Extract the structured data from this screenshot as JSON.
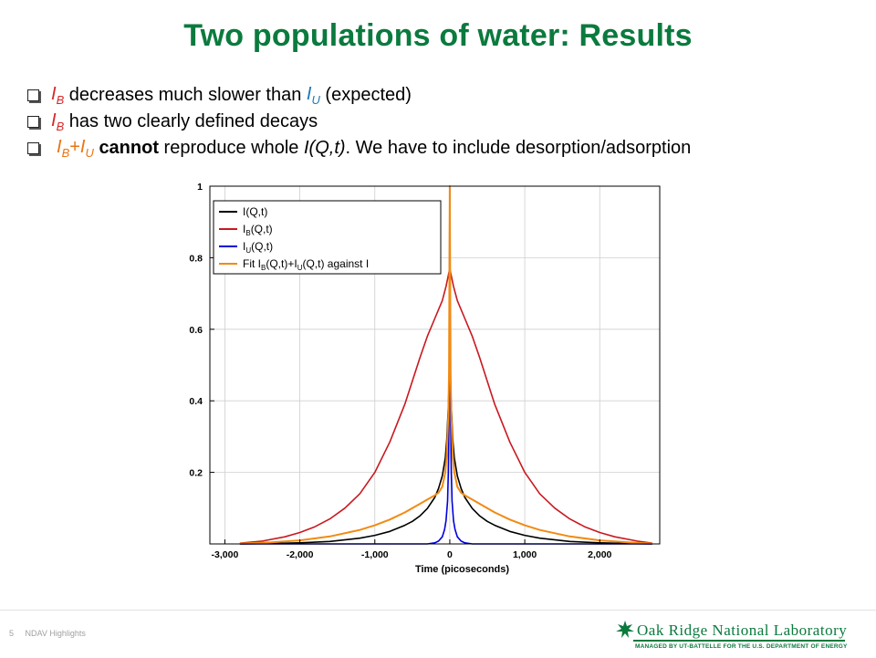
{
  "slide": {
    "title": "Two populations of water: Results",
    "page_number": "5",
    "footer_text": "NDAV Highlights",
    "logo": {
      "name": "Oak Ridge National Laboratory",
      "tagline": "MANAGED BY UT-BATTELLE FOR THE U.S. DEPARTMENT OF ENERGY"
    }
  },
  "bullets": [
    {
      "b1_sym": "I",
      "b1_sub": "B",
      "b1_text1": " decreases much slower than ",
      "b1_sym2": "I",
      "b1_sub2": "U",
      "b1_text2": " (expected)"
    },
    {
      "b2_sym": "I",
      "b2_sub": "B",
      "b2_text": " has two clearly defined decays"
    },
    {
      "b3_sym": "I",
      "b3_sub": "B",
      "b3_plus": "+",
      "b3_sym2": "I",
      "b3_sub2": "U",
      "b3_bold": "cannot",
      "b3_text1": " reproduce whole ",
      "b3_func": "I(Q,t)",
      "b3_text2": ". We have to include desorption/adsorption"
    }
  ],
  "colors": {
    "title_green": "#0b7a3e",
    "I_black": "#000000",
    "IB_red": "#c8191f",
    "IU_blue": "#0000dd",
    "fit_orange": "#f28a13"
  },
  "chart_data": {
    "type": "line",
    "xlabel": "Time (picoseconds)",
    "ylabel": "",
    "xlim": [
      -3200,
      2800
    ],
    "ylim": [
      0,
      1
    ],
    "x_ticks": [
      -3000,
      -2000,
      -1000,
      0,
      1000,
      2000
    ],
    "x_tick_labels": [
      "-3,000",
      "-2,000",
      "-1,000",
      "0",
      "1,000",
      "2,000"
    ],
    "y_ticks": [
      0.2,
      0.4,
      0.6,
      0.8,
      1
    ],
    "y_tick_labels": [
      "0.2",
      "0.4",
      "0.6",
      "0.8",
      "1"
    ],
    "grid": true,
    "legend_position": "top-left",
    "series": [
      {
        "name": "I(Q,t)",
        "color": "#000000",
        "x": [
          -2800,
          -2400,
          -2000,
          -1600,
          -1200,
          -1000,
          -800,
          -600,
          -500,
          -400,
          -300,
          -200,
          -150,
          -100,
          -60,
          -40,
          -20,
          -10,
          0,
          10,
          20,
          40,
          60,
          100,
          150,
          200,
          300,
          400,
          500,
          600,
          800,
          1000,
          1200,
          1600,
          2000,
          2400,
          2700
        ],
        "y": [
          0.0,
          0.001,
          0.003,
          0.007,
          0.016,
          0.024,
          0.035,
          0.052,
          0.063,
          0.078,
          0.099,
          0.13,
          0.155,
          0.19,
          0.24,
          0.29,
          0.38,
          0.44,
          0.52,
          0.44,
          0.38,
          0.29,
          0.24,
          0.19,
          0.155,
          0.13,
          0.099,
          0.078,
          0.063,
          0.052,
          0.035,
          0.024,
          0.016,
          0.007,
          0.003,
          0.001,
          0.0
        ]
      },
      {
        "name": "I_B(Q,t)",
        "color": "#c8191f",
        "x": [
          -2800,
          -2500,
          -2200,
          -2000,
          -1800,
          -1600,
          -1400,
          -1200,
          -1000,
          -800,
          -600,
          -400,
          -300,
          -200,
          -100,
          -50,
          0,
          50,
          100,
          200,
          300,
          400,
          600,
          800,
          1000,
          1200,
          1400,
          1600,
          1800,
          2000,
          2200,
          2500,
          2700
        ],
        "y": [
          0.002,
          0.008,
          0.02,
          0.032,
          0.048,
          0.07,
          0.1,
          0.14,
          0.2,
          0.285,
          0.39,
          0.52,
          0.58,
          0.63,
          0.68,
          0.72,
          0.77,
          0.72,
          0.68,
          0.63,
          0.58,
          0.52,
          0.39,
          0.285,
          0.2,
          0.14,
          0.1,
          0.07,
          0.048,
          0.032,
          0.02,
          0.008,
          0.002
        ]
      },
      {
        "name": "I_U(Q,t)",
        "color": "#0000dd",
        "x": [
          -2800,
          -300,
          -200,
          -150,
          -100,
          -70,
          -50,
          -30,
          -20,
          -10,
          -5,
          0,
          5,
          10,
          20,
          30,
          50,
          70,
          100,
          150,
          200,
          300,
          2700
        ],
        "y": [
          0,
          0,
          0.003,
          0.008,
          0.02,
          0.04,
          0.065,
          0.12,
          0.2,
          0.38,
          0.6,
          1.0,
          0.6,
          0.38,
          0.2,
          0.12,
          0.065,
          0.04,
          0.02,
          0.008,
          0.003,
          0,
          0
        ]
      },
      {
        "name": "Fit I_B(Q,t)+I_U(Q,t) against I",
        "color": "#f28a13",
        "x": [
          -2800,
          -2400,
          -2000,
          -1600,
          -1200,
          -1000,
          -800,
          -600,
          -400,
          -300,
          -200,
          -150,
          -100,
          -60,
          -40,
          -20,
          -10,
          0,
          10,
          20,
          40,
          60,
          100,
          150,
          200,
          300,
          400,
          600,
          800,
          1000,
          1200,
          1600,
          2000,
          2400,
          2700
        ],
        "y": [
          0.001,
          0.004,
          0.01,
          0.021,
          0.039,
          0.052,
          0.068,
          0.088,
          0.112,
          0.124,
          0.136,
          0.143,
          0.16,
          0.2,
          0.25,
          0.36,
          0.48,
          1.0,
          0.48,
          0.36,
          0.25,
          0.2,
          0.16,
          0.143,
          0.136,
          0.124,
          0.112,
          0.088,
          0.068,
          0.052,
          0.039,
          0.021,
          0.01,
          0.004,
          0.001
        ]
      }
    ],
    "legend_labels": {
      "l1_main": "I(Q,t)",
      "l2_main": "I",
      "l2_sub": "B",
      "l2_rest": "(Q,t)",
      "l3_main": "I",
      "l3_sub": "U",
      "l3_rest": "(Q,t)",
      "l4_a": "Fit I",
      "l4_sub1": "B",
      "l4_b": "(Q,t)+I",
      "l4_sub2": "U",
      "l4_c": "(Q,t) against I"
    }
  }
}
